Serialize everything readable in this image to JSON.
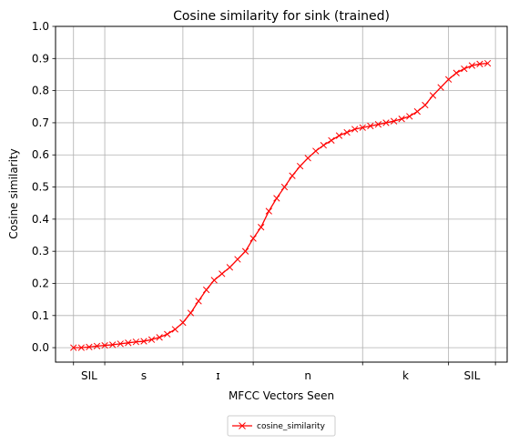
{
  "chart_data": {
    "type": "line",
    "title": "Cosine similarity for sink (trained)",
    "xlabel": "MFCC Vectors Seen",
    "ylabel": "Cosine similarity",
    "ylim": [
      -0.045,
      1.0
    ],
    "xlim": [
      -2.3,
      55.5
    ],
    "yticks": [
      "0.0",
      "0.1",
      "0.2",
      "0.3",
      "0.4",
      "0.5",
      "0.6",
      "0.7",
      "0.8",
      "0.9",
      "1.0"
    ],
    "ytick_values": [
      0.0,
      0.1,
      0.2,
      0.3,
      0.4,
      0.5,
      0.6,
      0.7,
      0.8,
      0.9,
      1.0
    ],
    "phone_boundaries": [
      0,
      4,
      14,
      23,
      37,
      48,
      54
    ],
    "phone_labels": [
      {
        "label": "SIL",
        "x": 2
      },
      {
        "label": "s",
        "x": 9
      },
      {
        "label": "ɪ",
        "x": 18.5
      },
      {
        "label": "n",
        "x": 30
      },
      {
        "label": "k",
        "x": 42.5
      },
      {
        "label": "SIL",
        "x": 51
      }
    ],
    "grid": true,
    "legend_position": "bottom-center-below",
    "series": [
      {
        "name": "cosine_similarity",
        "color": "#ff0000",
        "marker": "x",
        "x": [
          0,
          1,
          2,
          3,
          4,
          5,
          6,
          7,
          8,
          9,
          10,
          11,
          12,
          13,
          14,
          15,
          16,
          17,
          18,
          19,
          20,
          21,
          22,
          23,
          24,
          25,
          26,
          27,
          28,
          29,
          30,
          31,
          32,
          33,
          34,
          35,
          36,
          37,
          38,
          39,
          40,
          41,
          42,
          43,
          44,
          45,
          46,
          47,
          48,
          49,
          50,
          51,
          52,
          53
        ],
        "values": [
          0.0,
          0.0,
          0.002,
          0.005,
          0.007,
          0.009,
          0.012,
          0.015,
          0.018,
          0.02,
          0.025,
          0.032,
          0.042,
          0.057,
          0.078,
          0.108,
          0.145,
          0.18,
          0.21,
          0.23,
          0.25,
          0.275,
          0.3,
          0.34,
          0.375,
          0.425,
          0.465,
          0.5,
          0.535,
          0.565,
          0.59,
          0.612,
          0.63,
          0.645,
          0.66,
          0.67,
          0.68,
          0.685,
          0.69,
          0.695,
          0.7,
          0.705,
          0.712,
          0.72,
          0.735,
          0.755,
          0.785,
          0.81,
          0.835,
          0.855,
          0.868,
          0.878,
          0.883,
          0.885
        ]
      }
    ]
  }
}
